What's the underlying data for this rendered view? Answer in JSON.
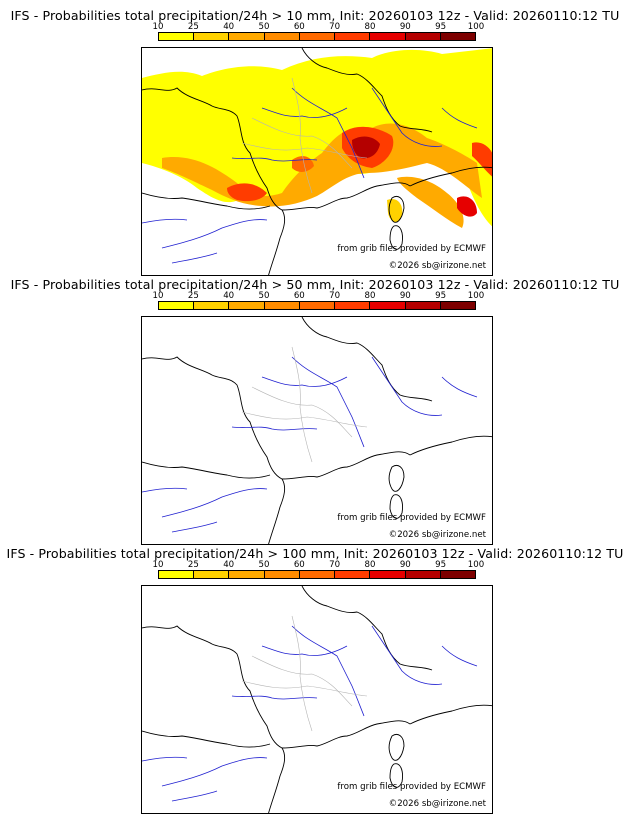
{
  "panels": [
    {
      "title": "IFS - Probabilities total precipitation/24h > 10 mm, Init: 20260103 12z - Valid: 20260110:12 TU",
      "threshold_mm": 10,
      "has_field": true
    },
    {
      "title": "IFS - Probabilities total precipitation/24h > 50 mm, Init: 20260103 12z - Valid: 20260110:12 TU",
      "threshold_mm": 50,
      "has_field": false
    },
    {
      "title": "IFS - Probabilities total precipitation/24h > 100 mm, Init: 20260103 12z - Valid: 20260110:12 TU",
      "threshold_mm": 100,
      "has_field": false
    }
  ],
  "colorbar": {
    "ticks": [
      "10",
      "25",
      "40",
      "50",
      "60",
      "70",
      "80",
      "90",
      "95",
      "100"
    ],
    "colors": [
      "#ffff00",
      "#ffd200",
      "#ffaa00",
      "#ff8c00",
      "#ff6a00",
      "#ff3c00",
      "#e60000",
      "#b40000",
      "#7d0000"
    ]
  },
  "map_colors": {
    "rivers": "#2020d0",
    "borders": "#000000",
    "regions": "#b4b4b4"
  },
  "credits": {
    "source": "from grib files provided by ECMWF",
    "copyright": "©2026 sb@irizone.net"
  }
}
